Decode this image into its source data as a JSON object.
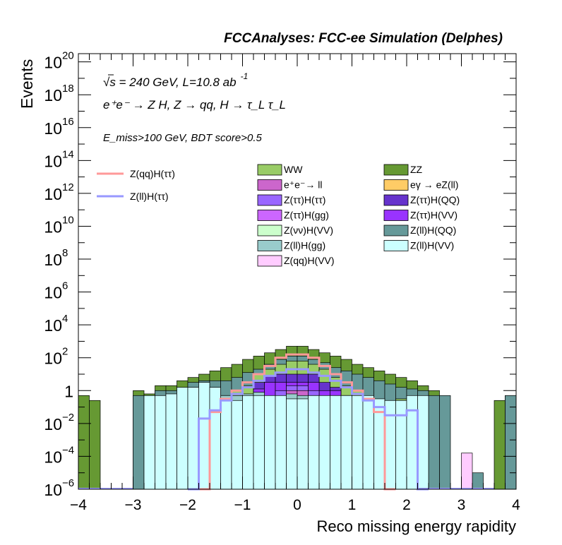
{
  "chart_data": {
    "type": "bar",
    "title": "FCCAnalyses: FCC-ee Simulation (Delphes)",
    "xlabel": "Reco missing energy rapidity",
    "ylabel": "Events",
    "xlim": [
      -4,
      4
    ],
    "ylim_log10": [
      -6,
      20.5
    ],
    "log_y": true,
    "x_ticks": [
      "−4",
      "−3",
      "−2",
      "−1",
      "0",
      "1",
      "2",
      "3",
      "4"
    ],
    "y_ticks": [
      {
        "exp": -6,
        "label": "10",
        "sup": "−6"
      },
      {
        "exp": -4,
        "label": "10",
        "sup": "−4"
      },
      {
        "exp": -2,
        "label": "10",
        "sup": "−2"
      },
      {
        "exp": 0,
        "label": "1",
        "sup": ""
      },
      {
        "exp": 2,
        "label": "10",
        "sup": "2"
      },
      {
        "exp": 4,
        "label": "10",
        "sup": "4"
      },
      {
        "exp": 6,
        "label": "10",
        "sup": "6"
      },
      {
        "exp": 8,
        "label": "10",
        "sup": "8"
      },
      {
        "exp": 10,
        "label": "10",
        "sup": "10"
      },
      {
        "exp": 12,
        "label": "10",
        "sup": "12"
      },
      {
        "exp": 14,
        "label": "10",
        "sup": "14"
      },
      {
        "exp": 16,
        "label": "10",
        "sup": "16"
      },
      {
        "exp": 18,
        "label": "10",
        "sup": "18"
      },
      {
        "exp": 20,
        "label": "10",
        "sup": "20"
      }
    ],
    "annotations": {
      "energy": "√s = 240 GeV, L=10.8 ab",
      "energy_sup": "-1",
      "process": "e⁺e⁻ → Z H, Z → qq, H → τ_L τ_L",
      "selection": "E_miss>100 GeV, BDT score>0.5"
    },
    "stack_order_bottom_to_top": [
      "Z(ll)H(VV)",
      "Z(ll)H(gg)",
      "Z(qq)H(VV)",
      "eγ → eZ(ll)",
      "Z(νν)H(VV)",
      "e⁺e⁻→ ll",
      "Z(ττ)H(gg)",
      "Z(ττ)H(ττ)",
      "Z(ττ)H(VV)",
      "Z(ττ)H(QQ)",
      "WW",
      "Z(ll)H(QQ)",
      "ZZ"
    ],
    "stack_series": [
      {
        "name": "Z(ll)H(VV)",
        "color": "#ccffff",
        "bins": [
          [
            -2.8,
            -0.3
          ],
          [
            -2.6,
            -0.3
          ],
          [
            -2.4,
            -0.2
          ],
          [
            -2.2,
            0.2
          ],
          [
            -2.0,
            0.2
          ],
          [
            -1.8,
            0.5
          ],
          [
            -1.6,
            0.2
          ],
          [
            -1.4,
            -0.6
          ],
          [
            -1.2,
            -0.6
          ],
          [
            -1.0,
            -0.3
          ],
          [
            -0.8,
            -0.3
          ],
          [
            -0.6,
            -0.3
          ],
          [
            -0.4,
            -0.3
          ],
          [
            -0.2,
            -0.5
          ],
          [
            0.0,
            -0.5
          ],
          [
            0.2,
            -0.3
          ],
          [
            0.4,
            -0.3
          ],
          [
            0.6,
            -0.3
          ],
          [
            0.8,
            -0.3
          ],
          [
            1.0,
            -0.3
          ],
          [
            1.2,
            -0.3
          ],
          [
            1.4,
            -0.5
          ],
          [
            1.6,
            -0.6
          ],
          [
            1.8,
            -0.6
          ],
          [
            2.0,
            -0.3
          ],
          [
            2.2,
            -0.3
          ]
        ]
      },
      {
        "name": "Z(ll)H(gg)",
        "color": "#99cccc",
        "bins": [
          [
            -1.4,
            -0.3
          ],
          [
            -1.2,
            -0.3
          ],
          [
            -1.0,
            -0.2
          ],
          [
            -0.8,
            -0.1
          ],
          [
            -0.4,
            -0.4
          ],
          [
            -0.2,
            -0.2
          ],
          [
            0.0,
            -0.3
          ],
          [
            0.2,
            -0.3
          ],
          [
            0.4,
            -0.4
          ],
          [
            0.6,
            -0.3
          ],
          [
            0.8,
            -0.3
          ]
        ]
      },
      {
        "name": "Z(qq)H(VV)",
        "color": "#ffccff",
        "bins": [
          [
            -1.8,
            -0.6
          ],
          [
            -1.6,
            -0.6
          ],
          [
            -1.4,
            -0.6
          ],
          [
            -1.2,
            -0.6
          ],
          [
            -0.6,
            -0.6
          ],
          [
            -0.4,
            -0.6
          ],
          [
            0.4,
            -0.6
          ],
          [
            0.6,
            -0.6
          ],
          [
            1.2,
            -0.6
          ],
          [
            1.4,
            -0.6
          ],
          [
            1.8,
            -0.6
          ],
          [
            3.0,
            -3.8
          ]
        ]
      },
      {
        "name": "eγ → eZ(ll)",
        "color": "#ffcc66",
        "bins": [
          [
            -0.4,
            -1.2
          ],
          [
            0.6,
            -1.2
          ]
        ]
      },
      {
        "name": "Z(νν)H(VV)",
        "color": "#ccffcc",
        "bins": []
      },
      {
        "name": "e⁺e⁻→ ll",
        "color": "#cc66cc",
        "bins": [
          [
            -0.2,
            0.0
          ],
          [
            0.0,
            0.0
          ]
        ]
      },
      {
        "name": "Z(ττ)H(gg)",
        "color": "#cc66ff",
        "bins": [
          [
            -1.4,
            -1.0
          ],
          [
            -1.2,
            -1.0
          ],
          [
            -1.0,
            -1.0
          ],
          [
            -0.8,
            -0.8
          ],
          [
            -0.6,
            -0.6
          ],
          [
            -0.4,
            -0.6
          ],
          [
            0.4,
            -0.6
          ],
          [
            0.6,
            -0.6
          ],
          [
            0.8,
            -0.6
          ],
          [
            1.0,
            -0.6
          ],
          [
            1.2,
            -0.6
          ],
          [
            1.4,
            -1.0
          ]
        ]
      },
      {
        "name": "Z(ττ)H(ττ)",
        "color": "#9966ff",
        "bins": [
          [
            -0.4,
            0.0
          ],
          [
            -0.2,
            0.3
          ],
          [
            0.0,
            0.3
          ],
          [
            0.2,
            0.0
          ],
          [
            0.4,
            -0.6
          ],
          [
            0.6,
            -0.6
          ]
        ]
      },
      {
        "name": "Z(ττ)H(VV)",
        "color": "#9933ff",
        "bins": [
          [
            -1.6,
            -1.2
          ],
          [
            -1.4,
            -0.6
          ],
          [
            -1.2,
            -0.6
          ],
          [
            -1.0,
            -0.3
          ],
          [
            -0.8,
            0.1
          ],
          [
            -0.6,
            0.5
          ],
          [
            -0.4,
            0.5
          ],
          [
            -0.2,
            0.5
          ],
          [
            0.0,
            0.5
          ],
          [
            0.2,
            0.5
          ],
          [
            0.4,
            0.0
          ],
          [
            0.6,
            0.0
          ],
          [
            0.8,
            -0.3
          ],
          [
            1.0,
            -0.8
          ],
          [
            1.2,
            -1.0
          ]
        ]
      },
      {
        "name": "Z(ττ)H(QQ)",
        "color": "#6633cc",
        "bins": [
          [
            -0.8,
            0.5
          ],
          [
            -0.6,
            0.9
          ],
          [
            -0.4,
            1.0
          ],
          [
            -0.2,
            1.0
          ],
          [
            0.0,
            1.0
          ],
          [
            0.2,
            1.0
          ],
          [
            0.4,
            0.5
          ],
          [
            0.6,
            0.2
          ],
          [
            0.8,
            -1.3
          ],
          [
            1.0,
            -2.5
          ]
        ]
      },
      {
        "name": "WW",
        "color": "#99cc66",
        "bins": [
          [
            -1.4,
            -0.3
          ],
          [
            -1.2,
            0.0
          ],
          [
            -1.0,
            0.3
          ],
          [
            -0.8,
            1.0
          ],
          [
            -0.6,
            1.3
          ],
          [
            -0.4,
            1.6
          ],
          [
            -0.2,
            1.8
          ],
          [
            0.0,
            1.8
          ],
          [
            0.2,
            1.6
          ],
          [
            0.4,
            1.3
          ],
          [
            0.6,
            0.8
          ],
          [
            0.8,
            0.3
          ],
          [
            1.0,
            0.0
          ],
          [
            1.2,
            -0.5
          ],
          [
            1.4,
            -1.5
          ],
          [
            1.6,
            -1.5
          ],
          [
            1.8,
            -0.5
          ]
        ]
      },
      {
        "name": "Z(ll)H(QQ)",
        "color": "#669999",
        "bins": [
          [
            -3.0,
            -0.3
          ],
          [
            -2.8,
            -0.3
          ],
          [
            -2.6,
            0.0
          ],
          [
            -2.4,
            0.0
          ],
          [
            -2.2,
            0.0
          ],
          [
            -2.0,
            0.5
          ],
          [
            -1.8,
            0.6
          ],
          [
            -1.6,
            0.6
          ],
          [
            -1.4,
            0.6
          ],
          [
            -1.2,
            0.8
          ],
          [
            -1.0,
            1.1
          ],
          [
            -0.8,
            1.3
          ],
          [
            -0.6,
            1.6
          ],
          [
            -0.4,
            1.9
          ],
          [
            -0.2,
            2.1
          ],
          [
            0.0,
            2.1
          ],
          [
            0.2,
            1.9
          ],
          [
            0.4,
            1.7
          ],
          [
            0.6,
            1.4
          ],
          [
            0.8,
            1.2
          ],
          [
            1.0,
            1.0
          ],
          [
            1.2,
            0.8
          ],
          [
            1.4,
            0.6
          ],
          [
            1.6,
            0.4
          ],
          [
            1.8,
            0.2
          ],
          [
            2.0,
            0.1
          ],
          [
            2.2,
            0.0
          ],
          [
            2.4,
            -0.3
          ],
          [
            2.6,
            -0.3
          ],
          [
            3.2,
            -5.0
          ],
          [
            3.8,
            -0.3
          ]
        ]
      },
      {
        "name": "ZZ",
        "color": "#669933",
        "bins": [
          [
            -4.0,
            -0.3
          ],
          [
            -3.8,
            -0.6
          ],
          [
            -3.0,
            0.0
          ],
          [
            -2.8,
            -0.2
          ],
          [
            -2.6,
            0.3
          ],
          [
            -2.4,
            0.3
          ],
          [
            -2.2,
            0.6
          ],
          [
            -2.0,
            0.8
          ],
          [
            -1.8,
            1.0
          ],
          [
            -1.6,
            1.2
          ],
          [
            -1.4,
            1.4
          ],
          [
            -1.2,
            1.6
          ],
          [
            -1.0,
            1.9
          ],
          [
            -0.8,
            2.1
          ],
          [
            -0.6,
            2.3
          ],
          [
            -0.4,
            2.5
          ],
          [
            -0.2,
            2.7
          ],
          [
            0.0,
            2.7
          ],
          [
            0.2,
            2.5
          ],
          [
            0.4,
            2.3
          ],
          [
            0.6,
            2.1
          ],
          [
            0.8,
            1.9
          ],
          [
            1.0,
            1.6
          ],
          [
            1.2,
            1.4
          ],
          [
            1.4,
            1.2
          ],
          [
            1.6,
            1.0
          ],
          [
            1.8,
            0.8
          ],
          [
            2.0,
            0.6
          ],
          [
            2.2,
            0.3
          ],
          [
            2.4,
            0.0
          ],
          [
            3.6,
            -0.6
          ],
          [
            3.8,
            -0.3
          ]
        ]
      }
    ],
    "signal_series": [
      {
        "name": "Z(qq)H(ττ)",
        "color": "#ff9999",
        "bins": [
          [
            -2.0,
            -6.0
          ],
          [
            -1.8,
            -6.0
          ],
          [
            -1.6,
            -1.3
          ],
          [
            -1.4,
            -0.5
          ],
          [
            -1.2,
            0.0
          ],
          [
            -1.0,
            0.5
          ],
          [
            -0.8,
            1.0
          ],
          [
            -0.6,
            1.5
          ],
          [
            -0.4,
            2.0
          ],
          [
            -0.2,
            2.2
          ],
          [
            0.0,
            2.2
          ],
          [
            0.2,
            2.0
          ],
          [
            0.4,
            1.5
          ],
          [
            0.6,
            1.0
          ],
          [
            0.8,
            0.5
          ],
          [
            1.0,
            0.0
          ],
          [
            1.2,
            -0.5
          ],
          [
            1.4,
            -1.3
          ],
          [
            1.6,
            -6.0
          ]
        ]
      },
      {
        "name": "Z(ll)H(ττ)",
        "color": "#9999ff",
        "bins": [
          [
            -2.0,
            -6.0
          ],
          [
            -1.8,
            -1.7
          ],
          [
            -1.6,
            -1.2
          ],
          [
            -1.4,
            -0.6
          ],
          [
            -1.2,
            -0.2
          ],
          [
            -1.0,
            0.2
          ],
          [
            -0.8,
            0.6
          ],
          [
            -0.6,
            0.9
          ],
          [
            -0.4,
            1.1
          ],
          [
            -0.2,
            1.3
          ],
          [
            0.0,
            1.3
          ],
          [
            0.2,
            1.1
          ],
          [
            0.4,
            0.9
          ],
          [
            0.6,
            0.6
          ],
          [
            0.8,
            0.2
          ],
          [
            1.0,
            -0.2
          ],
          [
            1.2,
            -0.6
          ],
          [
            1.4,
            -1.0
          ],
          [
            1.6,
            -1.5
          ],
          [
            1.8,
            -1.5
          ],
          [
            2.0,
            -1.2
          ],
          [
            2.2,
            -6.0
          ]
        ]
      }
    ],
    "legend": {
      "signals": [
        "Z(qq)H(ττ)",
        "Z(ll)H(ττ)"
      ],
      "left_column": [
        "WW",
        "e⁺e⁻→ ll",
        "Z(ττ)H(ττ)",
        "Z(ττ)H(gg)",
        "Z(νν)H(VV)",
        "Z(ll)H(gg)",
        "Z(qq)H(VV)"
      ],
      "right_column": [
        "ZZ",
        "eγ → eZ(ll)",
        "Z(ττ)H(QQ)",
        "Z(ττ)H(VV)",
        "Z(ll)H(QQ)",
        "Z(ll)H(VV)"
      ]
    }
  }
}
